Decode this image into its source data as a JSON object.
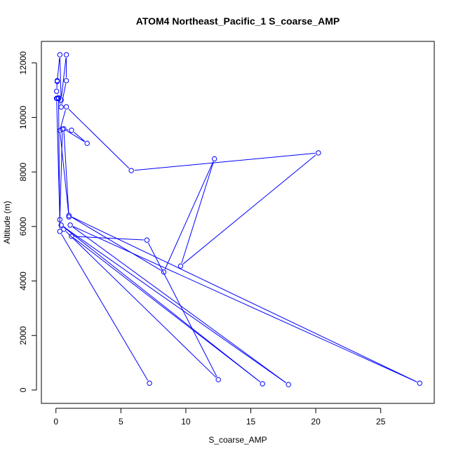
{
  "chart_data": {
    "type": "line",
    "title": "ATOM4 Northeast_Pacific_1 S_coarse_AMP",
    "xlabel": "S_coarse_AMP",
    "ylabel": "Altitude (m)",
    "xlim": [
      -1.12,
      29.12
    ],
    "ylim": [
      -490,
      12790
    ],
    "xticks": [
      0,
      5,
      10,
      15,
      20,
      25
    ],
    "yticks": [
      0,
      2000,
      4000,
      6000,
      8000,
      10000,
      12000
    ],
    "grid": false,
    "color": "#0000ff",
    "markers": "open-circle",
    "x": [
      7.2,
      0.3,
      0.2,
      0.05,
      0.1,
      0.1,
      0.3,
      0.4,
      0.8,
      0.8,
      0.4,
      0.2,
      0.1,
      0.05,
      0.3,
      0.5,
      1.2,
      2.4,
      0.6,
      1.0,
      0.3,
      0.8,
      5.8,
      20.2,
      9.6,
      12.2,
      8.3,
      1.0,
      28.0,
      1.1,
      17.9,
      0.4,
      15.9,
      1.2,
      7.0,
      12.5,
      0.6
    ],
    "y": [
      250,
      5820,
      10720,
      10960,
      11350,
      11320,
      12300,
      10640,
      12300,
      11350,
      10380,
      10690,
      10690,
      10700,
      6250,
      9570,
      9530,
      9050,
      9580,
      6350,
      9520,
      10390,
      8050,
      8700,
      4550,
      8480,
      4330,
      6400,
      250,
      6050,
      200,
      6050,
      230,
      5640,
      5500,
      380,
      5900
    ]
  }
}
